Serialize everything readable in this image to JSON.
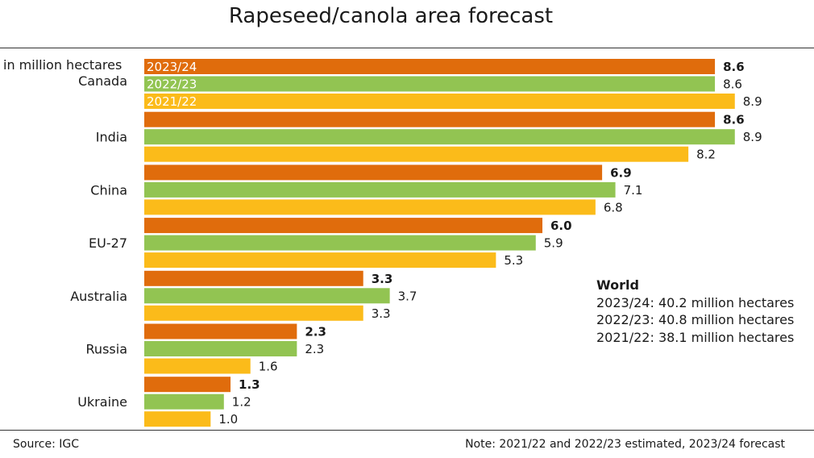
{
  "chart_data": {
    "type": "bar",
    "orientation": "horizontal",
    "title": "Rapeseed/canola area forecast",
    "unit_label": "in million hectares",
    "categories": [
      "Canada",
      "India",
      "China",
      "EU-27",
      "Australia",
      "Russia",
      "Ukraine"
    ],
    "series": [
      {
        "name": "2023/24",
        "color": "#e06c0c",
        "bold_labels": true,
        "values": [
          8.6,
          8.6,
          6.9,
          6.0,
          3.3,
          2.3,
          1.3
        ]
      },
      {
        "name": "2022/23",
        "color": "#92c452",
        "bold_labels": false,
        "values": [
          8.6,
          8.9,
          7.1,
          5.9,
          3.7,
          2.3,
          1.2
        ]
      },
      {
        "name": "2021/22",
        "color": "#fbbb1a",
        "bold_labels": false,
        "values": [
          8.9,
          8.2,
          6.8,
          5.3,
          3.3,
          1.6,
          1.0
        ]
      }
    ],
    "value_labels": [
      [
        "8.6",
        "8.6",
        "6.9",
        "6.0",
        "3.3",
        "2.3",
        "1.3"
      ],
      [
        "8.6",
        "8.9",
        "7.1",
        "5.9",
        "3.7",
        "2.3",
        "1.2"
      ],
      [
        "8.9",
        "8.2",
        "6.8",
        "5.3",
        "3.3",
        "1.6",
        "1.0"
      ]
    ],
    "xlim": [
      0,
      9
    ],
    "grid": false,
    "legend": "inside first category bars"
  },
  "world": {
    "title": "World",
    "lines": [
      "2023/24: 40.2 million hectares",
      "2022/23: 40.8 million hectares",
      "2021/22: 38.1 million hectares"
    ]
  },
  "footer": {
    "source": "Source: IGC",
    "note": "Note: 2021/22 and 2022/23 estimated, 2023/24 forecast"
  }
}
